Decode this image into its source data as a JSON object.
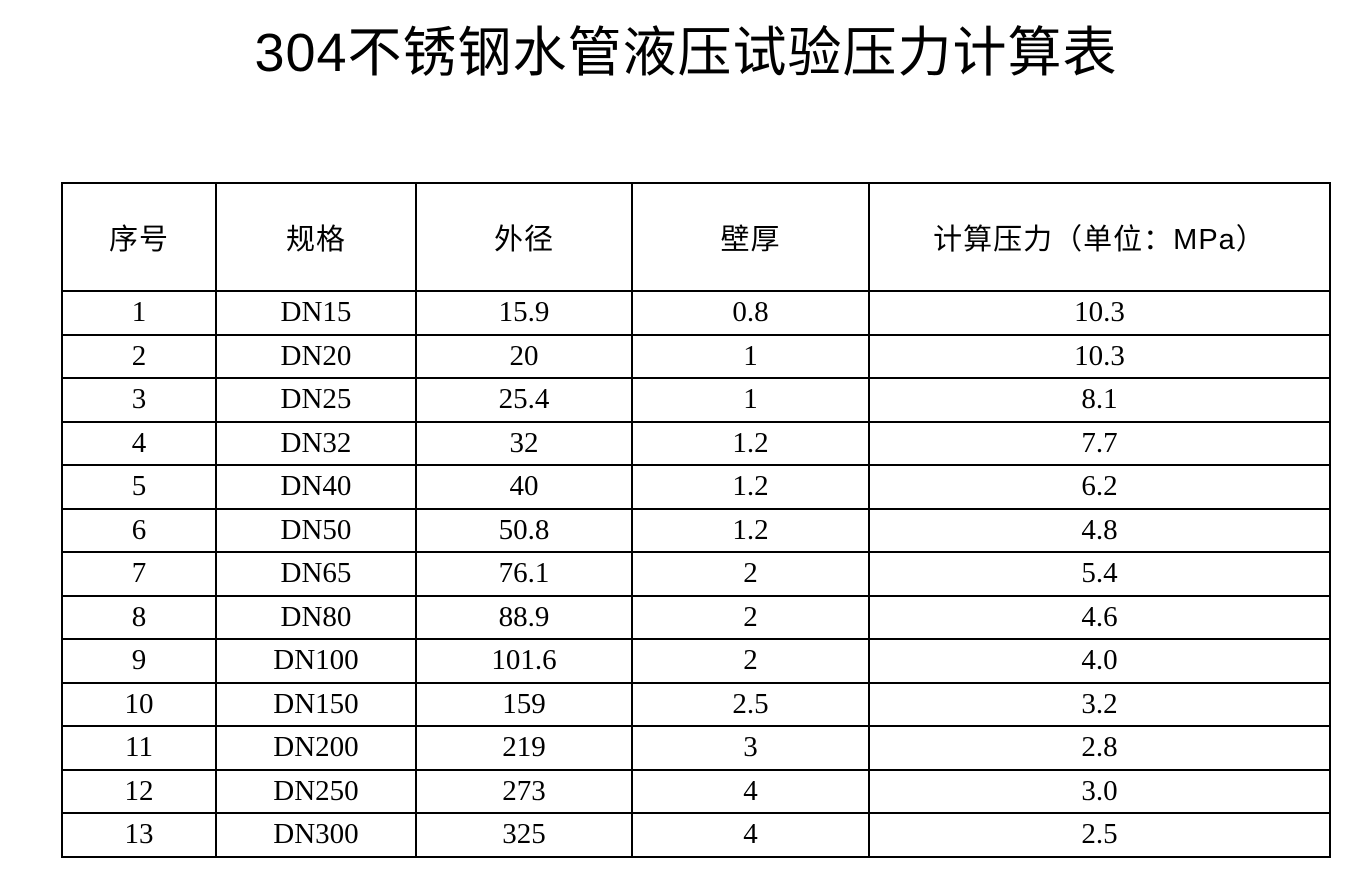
{
  "page": {
    "title": "304不锈钢水管液压试验压力计算表"
  },
  "table": {
    "headers": [
      "序号",
      "规格",
      "外径",
      "壁厚",
      "计算压力（单位：MPa）"
    ],
    "rows": [
      [
        "1",
        "DN15",
        "15.9",
        "0.8",
        "10.3"
      ],
      [
        "2",
        "DN20",
        "20",
        "1",
        "10.3"
      ],
      [
        "3",
        "DN25",
        "25.4",
        "1",
        "8.1"
      ],
      [
        "4",
        "DN32",
        "32",
        "1.2",
        "7.7"
      ],
      [
        "5",
        "DN40",
        "40",
        "1.2",
        "6.2"
      ],
      [
        "6",
        "DN50",
        "50.8",
        "1.2",
        "4.8"
      ],
      [
        "7",
        "DN65",
        "76.1",
        "2",
        "5.4"
      ],
      [
        "8",
        "DN80",
        "88.9",
        "2",
        "4.6"
      ],
      [
        "9",
        "DN100",
        "101.6",
        "2",
        "4.0"
      ],
      [
        "10",
        "DN150",
        "159",
        "2.5",
        "3.2"
      ],
      [
        "11",
        "DN200",
        "219",
        "3",
        "2.8"
      ],
      [
        "12",
        "DN250",
        "273",
        "4",
        "3.0"
      ],
      [
        "13",
        "DN300",
        "325",
        "4",
        "2.5"
      ]
    ]
  },
  "colors": {
    "background": "#ffffff",
    "border": "#000000",
    "text": "#000000"
  }
}
